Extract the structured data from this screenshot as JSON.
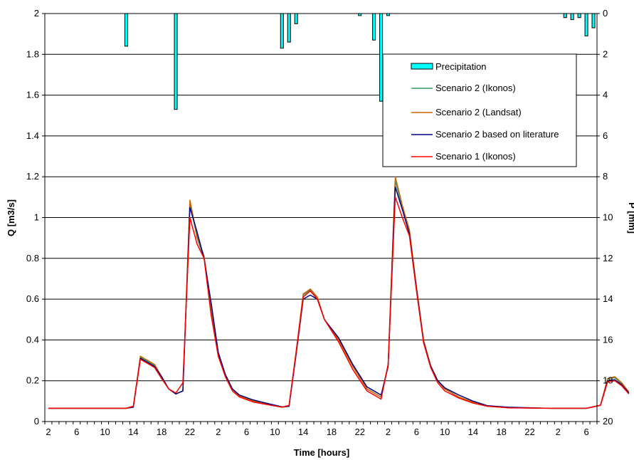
{
  "chart_data": {
    "type": "line",
    "xlabel": "Time [hours]",
    "ylabel": "Q [m3/s]",
    "y2label": "P [mm]",
    "ylim": [
      0,
      2
    ],
    "y2lim": [
      0,
      20
    ],
    "y2_inverted": true,
    "y_ticks": [
      "0",
      "0.2",
      "0.4",
      "0.6",
      "0.8",
      "1",
      "1.2",
      "1.4",
      "1.6",
      "1.8",
      "2"
    ],
    "y2_ticks": [
      "0",
      "2",
      "4",
      "6",
      "8",
      "10",
      "12",
      "14",
      "16",
      "18",
      "20"
    ],
    "x_ticks": [
      "2",
      "6",
      "10",
      "14",
      "18",
      "22",
      "2",
      "6",
      "10",
      "14",
      "18",
      "22",
      "2",
      "6",
      "10",
      "14",
      "18",
      "22",
      "2",
      "6"
    ],
    "x_step_hours": 1,
    "x_count": 78,
    "grid": "horizontal",
    "legend_position": "top-right",
    "precipitation": {
      "name": "Precipitation",
      "color": "#00FFFF",
      "bars": [
        {
          "hour": 12,
          "mm": 1.6
        },
        {
          "hour": 19,
          "mm": 4.7
        },
        {
          "hour": 34,
          "mm": 1.7
        },
        {
          "hour": 35,
          "mm": 1.4
        },
        {
          "hour": 36,
          "mm": 0.5
        },
        {
          "hour": 45,
          "mm": 0.1
        },
        {
          "hour": 47,
          "mm": 1.3
        },
        {
          "hour": 48,
          "mm": 4.3
        },
        {
          "hour": 49,
          "mm": 0.1
        },
        {
          "hour": 74,
          "mm": 0.2
        },
        {
          "hour": 75,
          "mm": 0.3
        },
        {
          "hour": 76,
          "mm": 0.2
        },
        {
          "hour": 77,
          "mm": 1.1
        },
        {
          "hour": 78,
          "mm": 0.7
        }
      ]
    },
    "series": [
      {
        "name": "Scenario 2 (Ikonos)",
        "color": "#339966",
        "points": [
          [
            1,
            0.065
          ],
          [
            12,
            0.065
          ],
          [
            13,
            0.075
          ],
          [
            14,
            0.315
          ],
          [
            16,
            0.275
          ],
          [
            17,
            0.22
          ],
          [
            18,
            0.16
          ],
          [
            19,
            0.135
          ],
          [
            20,
            0.15
          ],
          [
            21,
            1.08
          ],
          [
            22,
            0.9
          ],
          [
            23,
            0.8
          ],
          [
            24,
            0.55
          ],
          [
            25,
            0.33
          ],
          [
            26,
            0.23
          ],
          [
            27,
            0.16
          ],
          [
            28,
            0.125
          ],
          [
            30,
            0.1
          ],
          [
            34,
            0.07
          ],
          [
            35,
            0.075
          ],
          [
            36,
            0.34
          ],
          [
            37,
            0.62
          ],
          [
            38,
            0.645
          ],
          [
            39,
            0.605
          ],
          [
            40,
            0.5
          ],
          [
            42,
            0.4
          ],
          [
            44,
            0.27
          ],
          [
            46,
            0.16
          ],
          [
            48,
            0.12
          ],
          [
            49,
            0.28
          ],
          [
            50,
            1.18
          ],
          [
            51,
            1.05
          ],
          [
            52,
            0.93
          ],
          [
            53,
            0.65
          ],
          [
            54,
            0.395
          ],
          [
            55,
            0.275
          ],
          [
            56,
            0.2
          ],
          [
            57,
            0.16
          ],
          [
            59,
            0.12
          ],
          [
            61,
            0.095
          ],
          [
            63,
            0.075
          ],
          [
            66,
            0.068
          ],
          [
            72,
            0.065
          ],
          [
            77,
            0.065
          ],
          [
            79,
            0.08
          ],
          [
            80,
            0.21
          ],
          [
            81,
            0.215
          ],
          [
            82,
            0.185
          ],
          [
            83,
            0.14
          ]
        ]
      },
      {
        "name": "Scenario 2 (Landsat)",
        "color": "#CC6600",
        "points": [
          [
            1,
            0.065
          ],
          [
            12,
            0.065
          ],
          [
            13,
            0.075
          ],
          [
            14,
            0.32
          ],
          [
            16,
            0.28
          ],
          [
            17,
            0.22
          ],
          [
            18,
            0.16
          ],
          [
            19,
            0.135
          ],
          [
            20,
            0.15
          ],
          [
            21,
            1.085
          ],
          [
            22,
            0.91
          ],
          [
            23,
            0.81
          ],
          [
            24,
            0.56
          ],
          [
            25,
            0.335
          ],
          [
            26,
            0.23
          ],
          [
            27,
            0.16
          ],
          [
            28,
            0.125
          ],
          [
            30,
            0.1
          ],
          [
            34,
            0.07
          ],
          [
            35,
            0.075
          ],
          [
            36,
            0.345
          ],
          [
            37,
            0.625
          ],
          [
            38,
            0.65
          ],
          [
            39,
            0.61
          ],
          [
            40,
            0.5
          ],
          [
            42,
            0.4
          ],
          [
            44,
            0.27
          ],
          [
            46,
            0.16
          ],
          [
            48,
            0.12
          ],
          [
            49,
            0.28
          ],
          [
            50,
            1.2
          ],
          [
            51,
            1.06
          ],
          [
            52,
            0.94
          ],
          [
            53,
            0.66
          ],
          [
            54,
            0.4
          ],
          [
            55,
            0.275
          ],
          [
            56,
            0.2
          ],
          [
            57,
            0.16
          ],
          [
            59,
            0.12
          ],
          [
            61,
            0.095
          ],
          [
            63,
            0.075
          ],
          [
            66,
            0.068
          ],
          [
            72,
            0.065
          ],
          [
            77,
            0.065
          ],
          [
            79,
            0.08
          ],
          [
            80,
            0.21
          ],
          [
            81,
            0.22
          ],
          [
            82,
            0.19
          ],
          [
            83,
            0.145
          ]
        ]
      },
      {
        "name": "Scenario 2 based on literature",
        "color": "#000080",
        "points": [
          [
            1,
            0.065
          ],
          [
            12,
            0.065
          ],
          [
            13,
            0.07
          ],
          [
            14,
            0.31
          ],
          [
            16,
            0.27
          ],
          [
            17,
            0.22
          ],
          [
            18,
            0.16
          ],
          [
            19,
            0.135
          ],
          [
            20,
            0.15
          ],
          [
            21,
            1.05
          ],
          [
            22,
            0.93
          ],
          [
            23,
            0.8
          ],
          [
            24,
            0.58
          ],
          [
            25,
            0.34
          ],
          [
            26,
            0.23
          ],
          [
            27,
            0.16
          ],
          [
            28,
            0.13
          ],
          [
            30,
            0.105
          ],
          [
            34,
            0.072
          ],
          [
            35,
            0.075
          ],
          [
            36,
            0.33
          ],
          [
            37,
            0.6
          ],
          [
            38,
            0.62
          ],
          [
            39,
            0.6
          ],
          [
            40,
            0.5
          ],
          [
            42,
            0.41
          ],
          [
            44,
            0.28
          ],
          [
            46,
            0.17
          ],
          [
            48,
            0.13
          ],
          [
            49,
            0.27
          ],
          [
            50,
            1.15
          ],
          [
            51,
            1.04
          ],
          [
            52,
            0.92
          ],
          [
            53,
            0.65
          ],
          [
            54,
            0.39
          ],
          [
            55,
            0.27
          ],
          [
            56,
            0.2
          ],
          [
            57,
            0.165
          ],
          [
            59,
            0.13
          ],
          [
            61,
            0.1
          ],
          [
            63,
            0.078
          ],
          [
            66,
            0.07
          ],
          [
            72,
            0.065
          ],
          [
            77,
            0.065
          ],
          [
            79,
            0.08
          ],
          [
            80,
            0.2
          ],
          [
            81,
            0.205
          ],
          [
            82,
            0.18
          ],
          [
            83,
            0.14
          ]
        ]
      },
      {
        "name": "Scenario 1 (Ikonos)",
        "color": "#FF0000",
        "points": [
          [
            1,
            0.065
          ],
          [
            12,
            0.065
          ],
          [
            13,
            0.075
          ],
          [
            14,
            0.305
          ],
          [
            16,
            0.265
          ],
          [
            17,
            0.21
          ],
          [
            18,
            0.16
          ],
          [
            19,
            0.14
          ],
          [
            20,
            0.19
          ],
          [
            21,
            1.0
          ],
          [
            22,
            0.87
          ],
          [
            23,
            0.8
          ],
          [
            24,
            0.52
          ],
          [
            25,
            0.32
          ],
          [
            26,
            0.22
          ],
          [
            27,
            0.15
          ],
          [
            28,
            0.12
          ],
          [
            30,
            0.095
          ],
          [
            34,
            0.07
          ],
          [
            35,
            0.08
          ],
          [
            36,
            0.34
          ],
          [
            37,
            0.61
          ],
          [
            38,
            0.64
          ],
          [
            39,
            0.6
          ],
          [
            40,
            0.5
          ],
          [
            42,
            0.39
          ],
          [
            44,
            0.255
          ],
          [
            46,
            0.15
          ],
          [
            48,
            0.11
          ],
          [
            49,
            0.28
          ],
          [
            50,
            1.1
          ],
          [
            51,
            1.0
          ],
          [
            52,
            0.91
          ],
          [
            53,
            0.64
          ],
          [
            54,
            0.385
          ],
          [
            55,
            0.265
          ],
          [
            56,
            0.19
          ],
          [
            57,
            0.15
          ],
          [
            59,
            0.115
          ],
          [
            61,
            0.09
          ],
          [
            63,
            0.075
          ],
          [
            66,
            0.067
          ],
          [
            72,
            0.065
          ],
          [
            77,
            0.065
          ],
          [
            79,
            0.08
          ],
          [
            80,
            0.195
          ],
          [
            81,
            0.2
          ],
          [
            82,
            0.175
          ],
          [
            83,
            0.135
          ]
        ]
      }
    ]
  }
}
